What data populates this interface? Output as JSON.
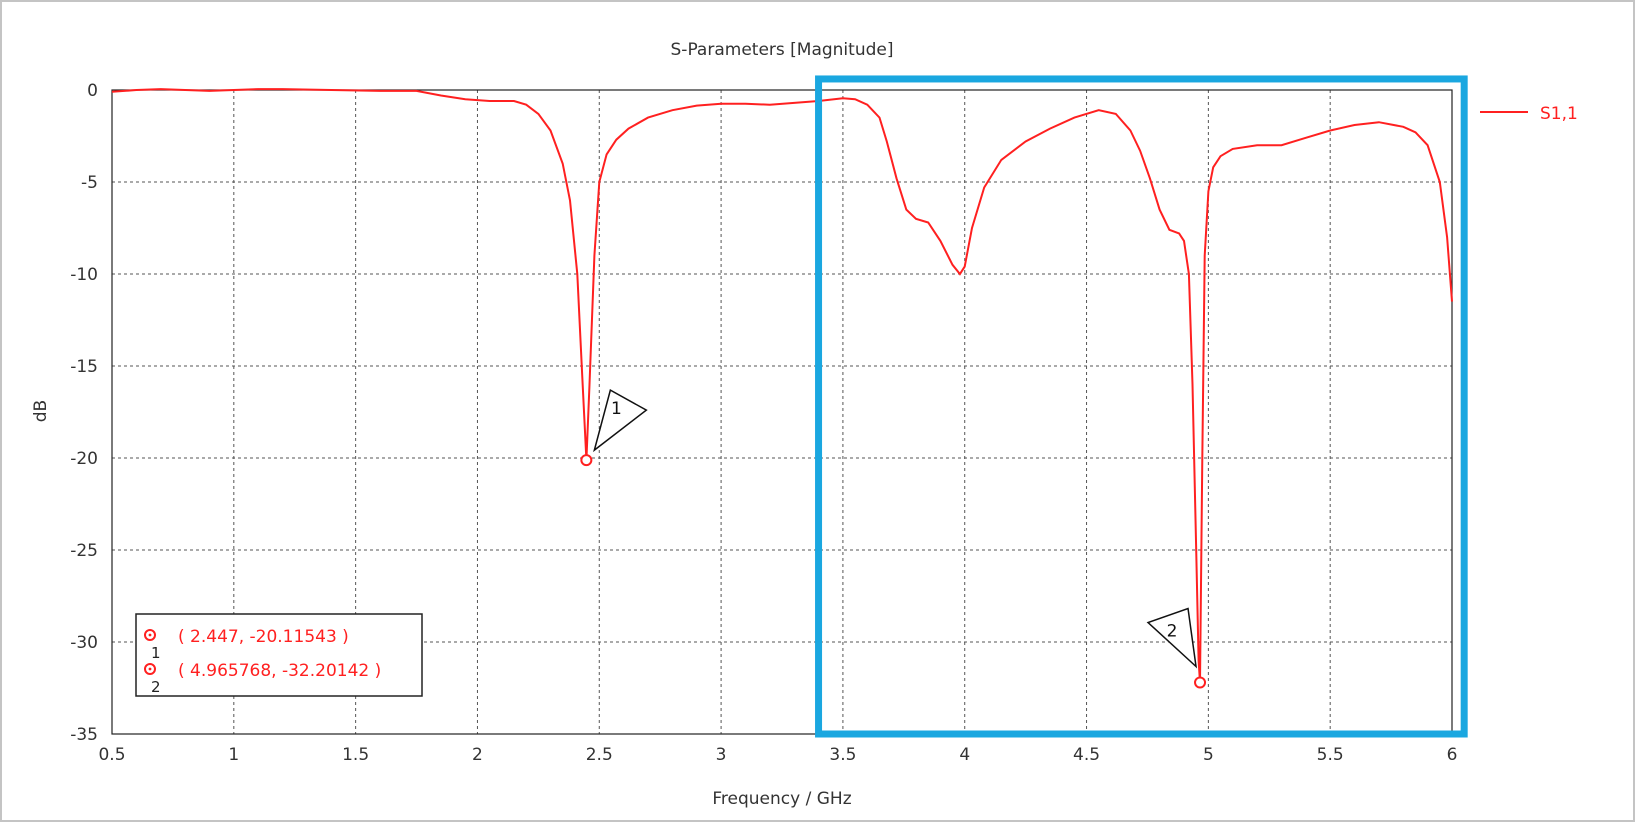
{
  "chart_data": {
    "type": "line",
    "title": "S-Parameters [Magnitude]",
    "xlabel": "Frequency / GHz",
    "ylabel": "dB",
    "xlim": [
      0.5,
      6
    ],
    "ylim": [
      -35,
      0
    ],
    "x_ticks": [
      "0.5",
      "1",
      "1.5",
      "2",
      "2.5",
      "3",
      "3.5",
      "4",
      "4.5",
      "5",
      "5.5",
      "6"
    ],
    "y_ticks": [
      "0",
      "-5",
      "-10",
      "-15",
      "-20",
      "-25",
      "-30",
      "-35"
    ],
    "grid": true,
    "legend_placement": "top-right, outside plot",
    "series": [
      {
        "name": "S1,1",
        "color": "#ff2020",
        "x": [
          0.5,
          0.6,
          0.7,
          0.8,
          0.9,
          1.0,
          1.1,
          1.2,
          1.4,
          1.6,
          1.75,
          1.85,
          1.95,
          2.05,
          2.15,
          2.2,
          2.25,
          2.3,
          2.35,
          2.38,
          2.41,
          2.43,
          2.447,
          2.46,
          2.48,
          2.5,
          2.53,
          2.57,
          2.62,
          2.7,
          2.8,
          2.9,
          3.0,
          3.1,
          3.2,
          3.3,
          3.4,
          3.5,
          3.55,
          3.6,
          3.65,
          3.68,
          3.72,
          3.76,
          3.8,
          3.85,
          3.9,
          3.95,
          3.98,
          4.0,
          4.03,
          4.08,
          4.15,
          4.25,
          4.35,
          4.45,
          4.55,
          4.62,
          4.68,
          4.72,
          4.76,
          4.8,
          4.84,
          4.88,
          4.9,
          4.92,
          4.935,
          4.95,
          4.96,
          4.965768,
          4.975,
          4.985,
          5.0,
          5.02,
          5.05,
          5.1,
          5.2,
          5.3,
          5.4,
          5.5,
          5.6,
          5.7,
          5.8,
          5.85,
          5.9,
          5.95,
          5.98,
          6.0
        ],
        "y": [
          -0.1,
          0.0,
          0.05,
          0.0,
          -0.05,
          0.0,
          0.05,
          0.05,
          0.0,
          -0.05,
          -0.05,
          -0.3,
          -0.5,
          -0.6,
          -0.6,
          -0.8,
          -1.3,
          -2.2,
          -4.0,
          -6.0,
          -10.0,
          -15.5,
          -20.11543,
          -16.0,
          -9.0,
          -5.0,
          -3.5,
          -2.7,
          -2.1,
          -1.5,
          -1.1,
          -0.85,
          -0.75,
          -0.75,
          -0.8,
          -0.7,
          -0.6,
          -0.45,
          -0.5,
          -0.8,
          -1.5,
          -2.8,
          -4.8,
          -6.5,
          -7.0,
          -7.2,
          -8.2,
          -9.5,
          -10.0,
          -9.6,
          -7.5,
          -5.3,
          -3.8,
          -2.8,
          -2.1,
          -1.5,
          -1.1,
          -1.3,
          -2.2,
          -3.3,
          -4.8,
          -6.5,
          -7.6,
          -7.8,
          -8.2,
          -10.0,
          -16.0,
          -25.0,
          -31.0,
          -32.20142,
          -20.0,
          -9.0,
          -5.5,
          -4.2,
          -3.6,
          -3.2,
          -3.0,
          -3.0,
          -2.6,
          -2.2,
          -1.9,
          -1.75,
          -2.0,
          -2.3,
          -3.0,
          -5.0,
          -8.0,
          -11.5
        ]
      }
    ],
    "markers": [
      {
        "id": "1",
        "x": 2.447,
        "y": -20.11543,
        "readout": "( 2.447, -20.11543 )"
      },
      {
        "id": "2",
        "x": 4.965768,
        "y": -32.20142,
        "readout": "( 4.965768, -32.20142 )"
      }
    ],
    "highlight_box": {
      "x_range": [
        3.4,
        6.05
      ],
      "y_range": [
        -35,
        0.6
      ],
      "color": "#1aa7e0"
    }
  }
}
